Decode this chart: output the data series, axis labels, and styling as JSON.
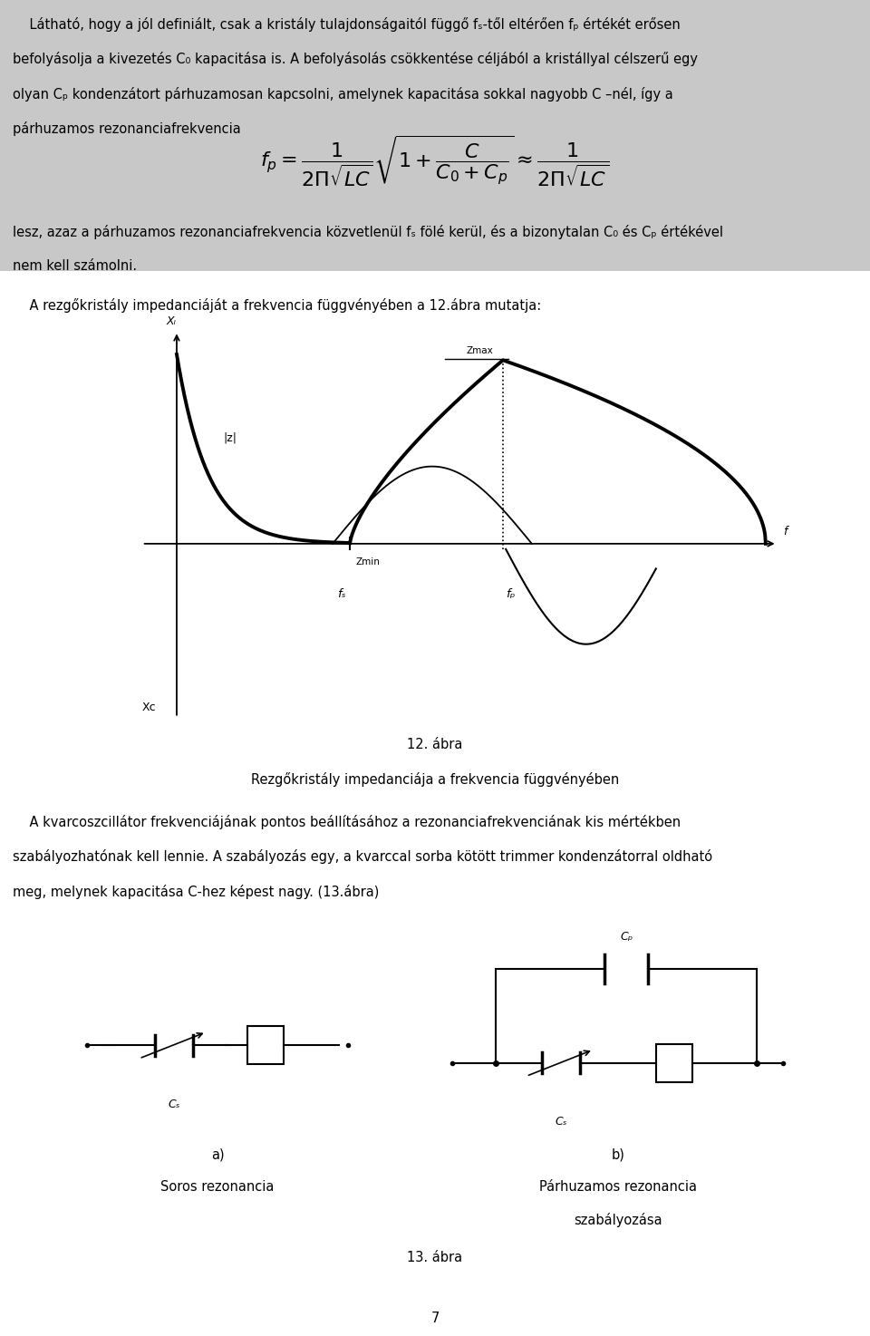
{
  "bg_color": "#c8c8c8",
  "white_bg": "#ffffff",
  "text_color": "#000000",
  "para1_lines": [
    "    Látható, hogy a jól definiált, csak a kristály tulajdonságaitól függő fₛ-től eltérően fₚ értékét erősen",
    "befolyásolja a kivezetés C₀ kapacitása is. A befolyásolás csökkentése céljából a kristállyal célszerű egy",
    "olyan Cₚ kondenzátort párhuzamosan kapcsolni, amelynek kapacitása sokkal nagyobb C –nél, így a",
    "párhuzamos rezonanciafrekvencia"
  ],
  "para2_lines": [
    "lesz, azaz a párhuzamos rezonanciafrekvencia közvetlenül fₛ fölé kerül, és a bizonytalan C₀ és Cₚ értékével",
    "nem kell számolni."
  ],
  "graph_intro": "    A rezgőkristály impedanciáját a frekvencia függvényében a 12.ábra mutatja:",
  "caption12_line1": "12. ábra",
  "caption12_line2": "Rezgőkristály impedanciája a frekvencia függvényében",
  "para3_lines": [
    "    A kvarcoszcillátor frekvenciájának pontos beállításához a rezonanciafrekvenciának kis mértékben",
    "szabályozhatónak kell lennie. A szabályozás egy, a kvarccal sorba kötött trimmer kondenzátorral oldható",
    "meg, melynek kapacitása C-hez képest nagy. (13.ábra)"
  ],
  "caption13": "13. ábra",
  "label_a": "a)",
  "label_b": "b)",
  "soros_label": "Soros rezonancia",
  "parhuzamos_label1": "Párhuzamos rezonancia",
  "parhuzamos_label2": "szabályozása",
  "page_number": "7",
  "font_size": 10.5,
  "formula": "$f_p = \\dfrac{1}{2\\Pi\\sqrt{LC}} \\sqrt{1+\\dfrac{C}{C_0+C_p}} \\approx \\dfrac{1}{2\\Pi\\sqrt{LC}}$"
}
